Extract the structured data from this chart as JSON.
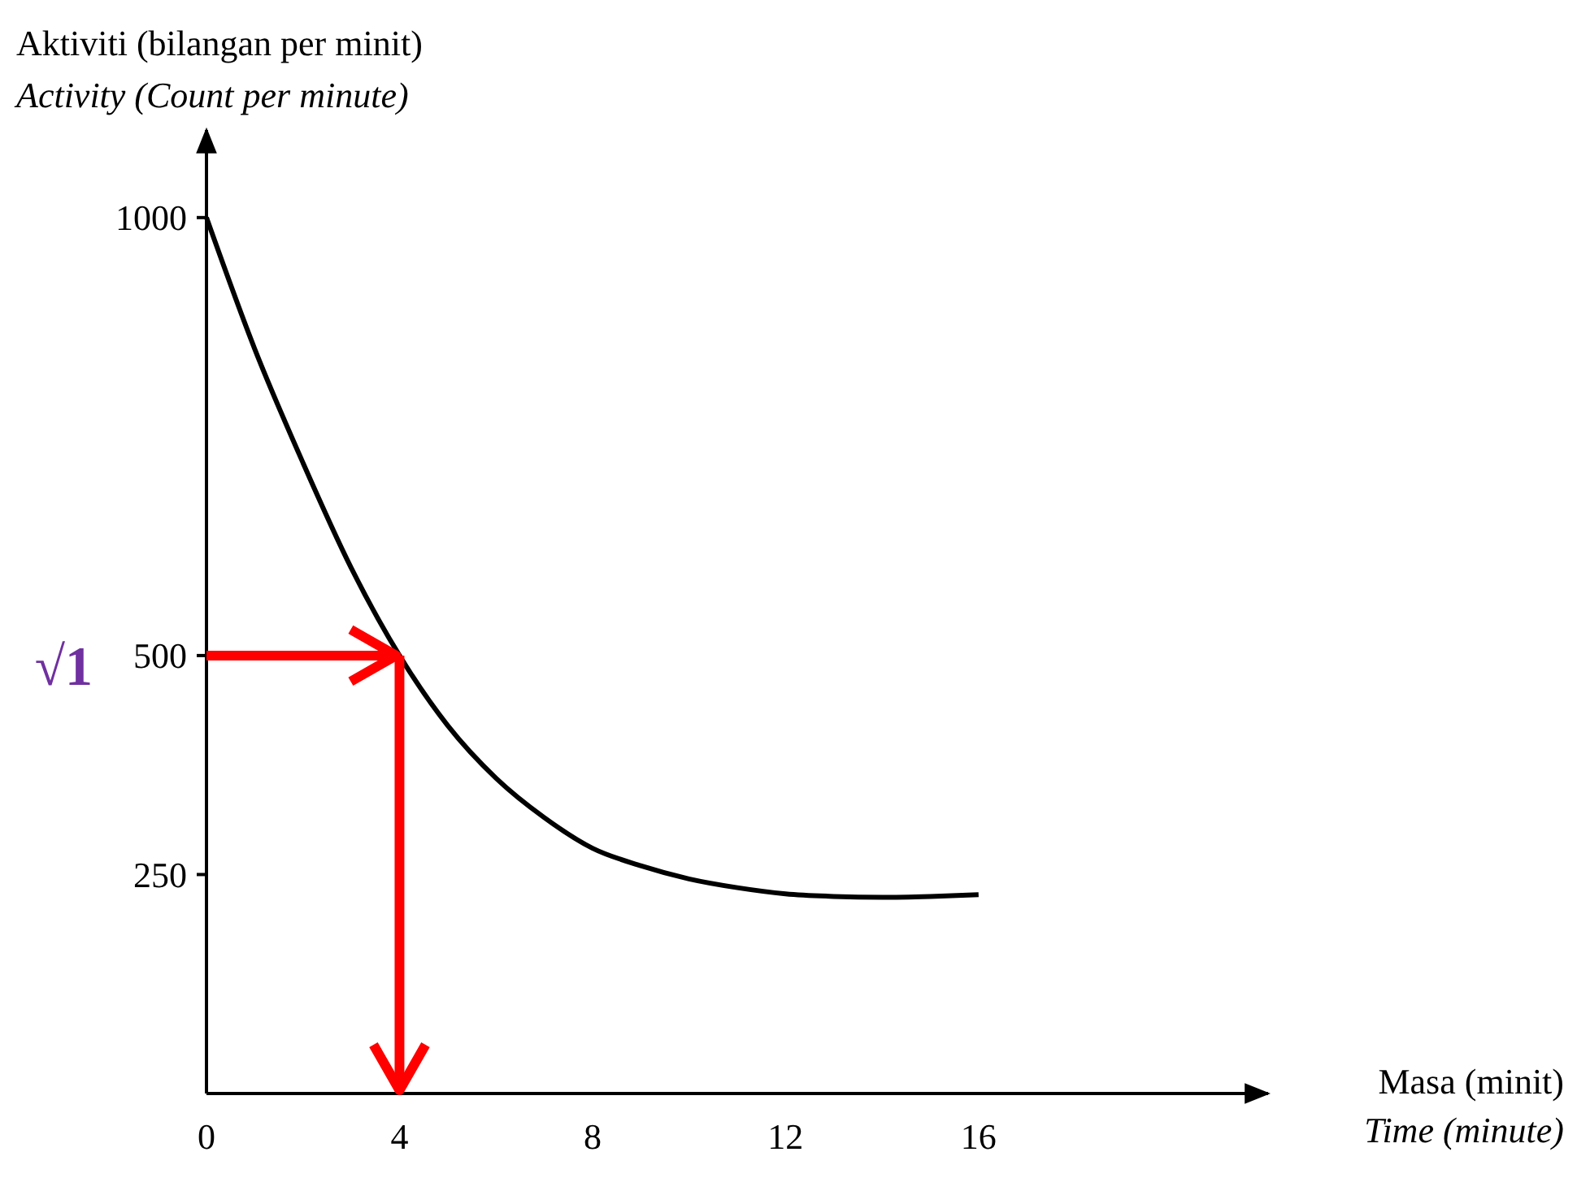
{
  "chart_data": {
    "type": "line",
    "xlabel": "Masa (minit)\nTime (minute)",
    "ylabel": "Aktiviti (bilangan per minit)\nActivity (Count per minute)",
    "x": [
      0,
      1,
      2,
      3,
      4,
      5,
      6,
      7,
      8,
      9,
      10,
      11,
      12,
      13,
      14,
      15,
      16
    ],
    "series": [
      {
        "color": "#000000",
        "values": [
          1000,
          850,
          720,
          600,
          500,
          420,
          360,
          315,
          280,
          260,
          245,
          235,
          228,
          225,
          224,
          225,
          227
        ]
      }
    ],
    "xlim": [
      0,
      22
    ],
    "xticks": [
      0,
      4,
      8,
      12,
      16
    ],
    "ylim": [
      0,
      1100
    ],
    "yticks": [
      250,
      500,
      1000
    ],
    "grid": false,
    "marker": "none",
    "line_style": "solid",
    "ref_lines": [
      {
        "axis": "y",
        "value": 500,
        "color": "#ff0000"
      },
      {
        "axis": "x",
        "value": 4,
        "color": "#ff0000"
      }
    ],
    "annotations": [
      "√1"
    ]
  }
}
